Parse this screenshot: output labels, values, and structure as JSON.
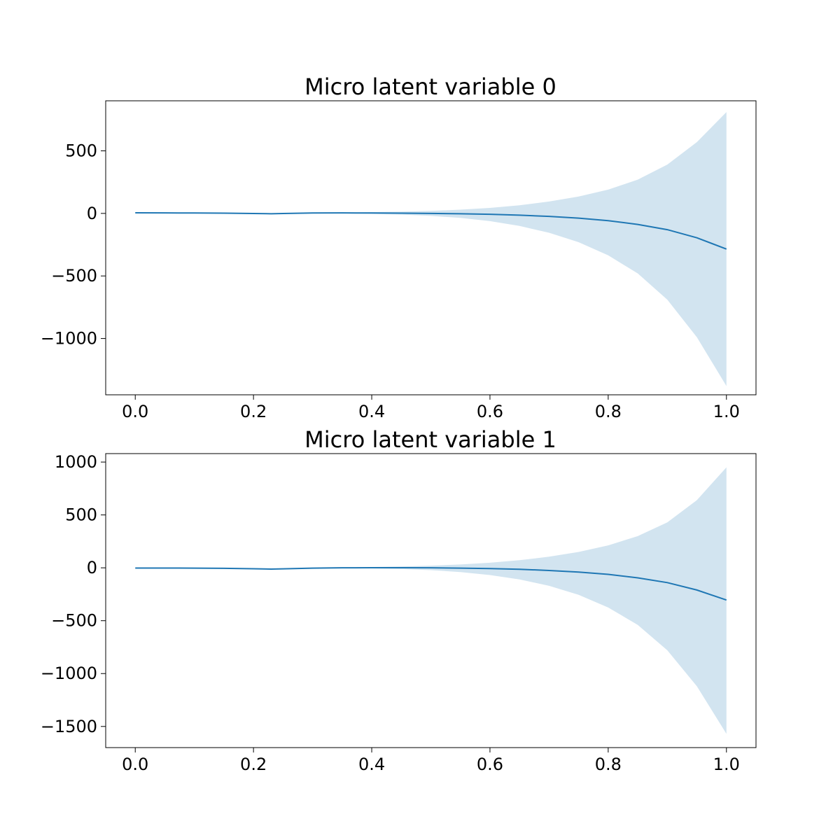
{
  "chart_data": [
    {
      "type": "line",
      "title": "Micro latent variable 0",
      "xlabel": "",
      "ylabel": "",
      "xlim": [
        -0.05,
        1.05
      ],
      "ylim": [
        -1450,
        900
      ],
      "xticks": [
        0.0,
        0.2,
        0.4,
        0.6,
        0.8,
        1.0
      ],
      "xtick_labels": [
        "0.0",
        "0.2",
        "0.4",
        "0.6",
        "0.8",
        "1.0"
      ],
      "yticks": [
        500,
        0,
        -500,
        -1000
      ],
      "ytick_labels": [
        "500",
        "0",
        "−500",
        "−1000"
      ],
      "grid": false,
      "legend": "none",
      "series": [
        {
          "x": [
            0.0,
            0.05,
            0.1,
            0.15,
            0.2,
            0.23,
            0.25,
            0.3,
            0.35,
            0.4,
            0.45,
            0.5,
            0.55,
            0.6,
            0.65,
            0.7,
            0.75,
            0.8,
            0.85,
            0.9,
            0.95,
            1.0
          ],
          "mean": [
            5,
            4,
            3,
            2,
            -1,
            -3,
            -1,
            3,
            4,
            3,
            2,
            0,
            -3,
            -7,
            -14,
            -24,
            -38,
            -58,
            -88,
            -130,
            -195,
            -285
          ],
          "upper": [
            5,
            4,
            3,
            2,
            -1,
            -3,
            0,
            5,
            8,
            10,
            14,
            20,
            30,
            44,
            65,
            95,
            135,
            190,
            270,
            390,
            570,
            810
          ],
          "lower": [
            5,
            4,
            3,
            2,
            -1,
            -3,
            -2,
            1,
            0,
            -4,
            -10,
            -20,
            -36,
            -62,
            -100,
            -155,
            -230,
            -335,
            -480,
            -690,
            -990,
            -1380
          ],
          "line_color": "#1f77b4",
          "band_color": "#1f77b4",
          "band_opacity": 0.2
        }
      ]
    },
    {
      "type": "line",
      "title": "Micro latent variable 1",
      "xlabel": "",
      "ylabel": "",
      "xlim": [
        -0.05,
        1.05
      ],
      "ylim": [
        -1700,
        1080
      ],
      "xticks": [
        0.0,
        0.2,
        0.4,
        0.6,
        0.8,
        1.0
      ],
      "xtick_labels": [
        "0.0",
        "0.2",
        "0.4",
        "0.6",
        "0.8",
        "1.0"
      ],
      "yticks": [
        1000,
        500,
        0,
        -500,
        -1000,
        -1500
      ],
      "ytick_labels": [
        "1000",
        "500",
        "0",
        "−500",
        "−1000",
        "−1500"
      ],
      "grid": false,
      "legend": "none",
      "series": [
        {
          "x": [
            0.0,
            0.05,
            0.1,
            0.15,
            0.2,
            0.23,
            0.25,
            0.3,
            0.35,
            0.4,
            0.45,
            0.5,
            0.55,
            0.6,
            0.65,
            0.7,
            0.75,
            0.8,
            0.85,
            0.9,
            0.95,
            1.0
          ],
          "mean": [
            -2,
            -2,
            -3,
            -5,
            -9,
            -12,
            -10,
            -3,
            0,
            1,
            1,
            0,
            -3,
            -7,
            -14,
            -25,
            -40,
            -62,
            -95,
            -140,
            -210,
            -305
          ],
          "upper": [
            -2,
            -2,
            -3,
            -5,
            -9,
            -12,
            -9,
            -1,
            4,
            8,
            13,
            20,
            32,
            48,
            72,
            105,
            150,
            212,
            300,
            430,
            640,
            950
          ],
          "lower": [
            -2,
            -2,
            -3,
            -5,
            -9,
            -12,
            -11,
            -5,
            -4,
            -6,
            -12,
            -22,
            -40,
            -68,
            -110,
            -170,
            -255,
            -375,
            -540,
            -780,
            -1120,
            -1570
          ],
          "line_color": "#1f77b4",
          "band_color": "#1f77b4",
          "band_opacity": 0.2
        }
      ]
    }
  ]
}
